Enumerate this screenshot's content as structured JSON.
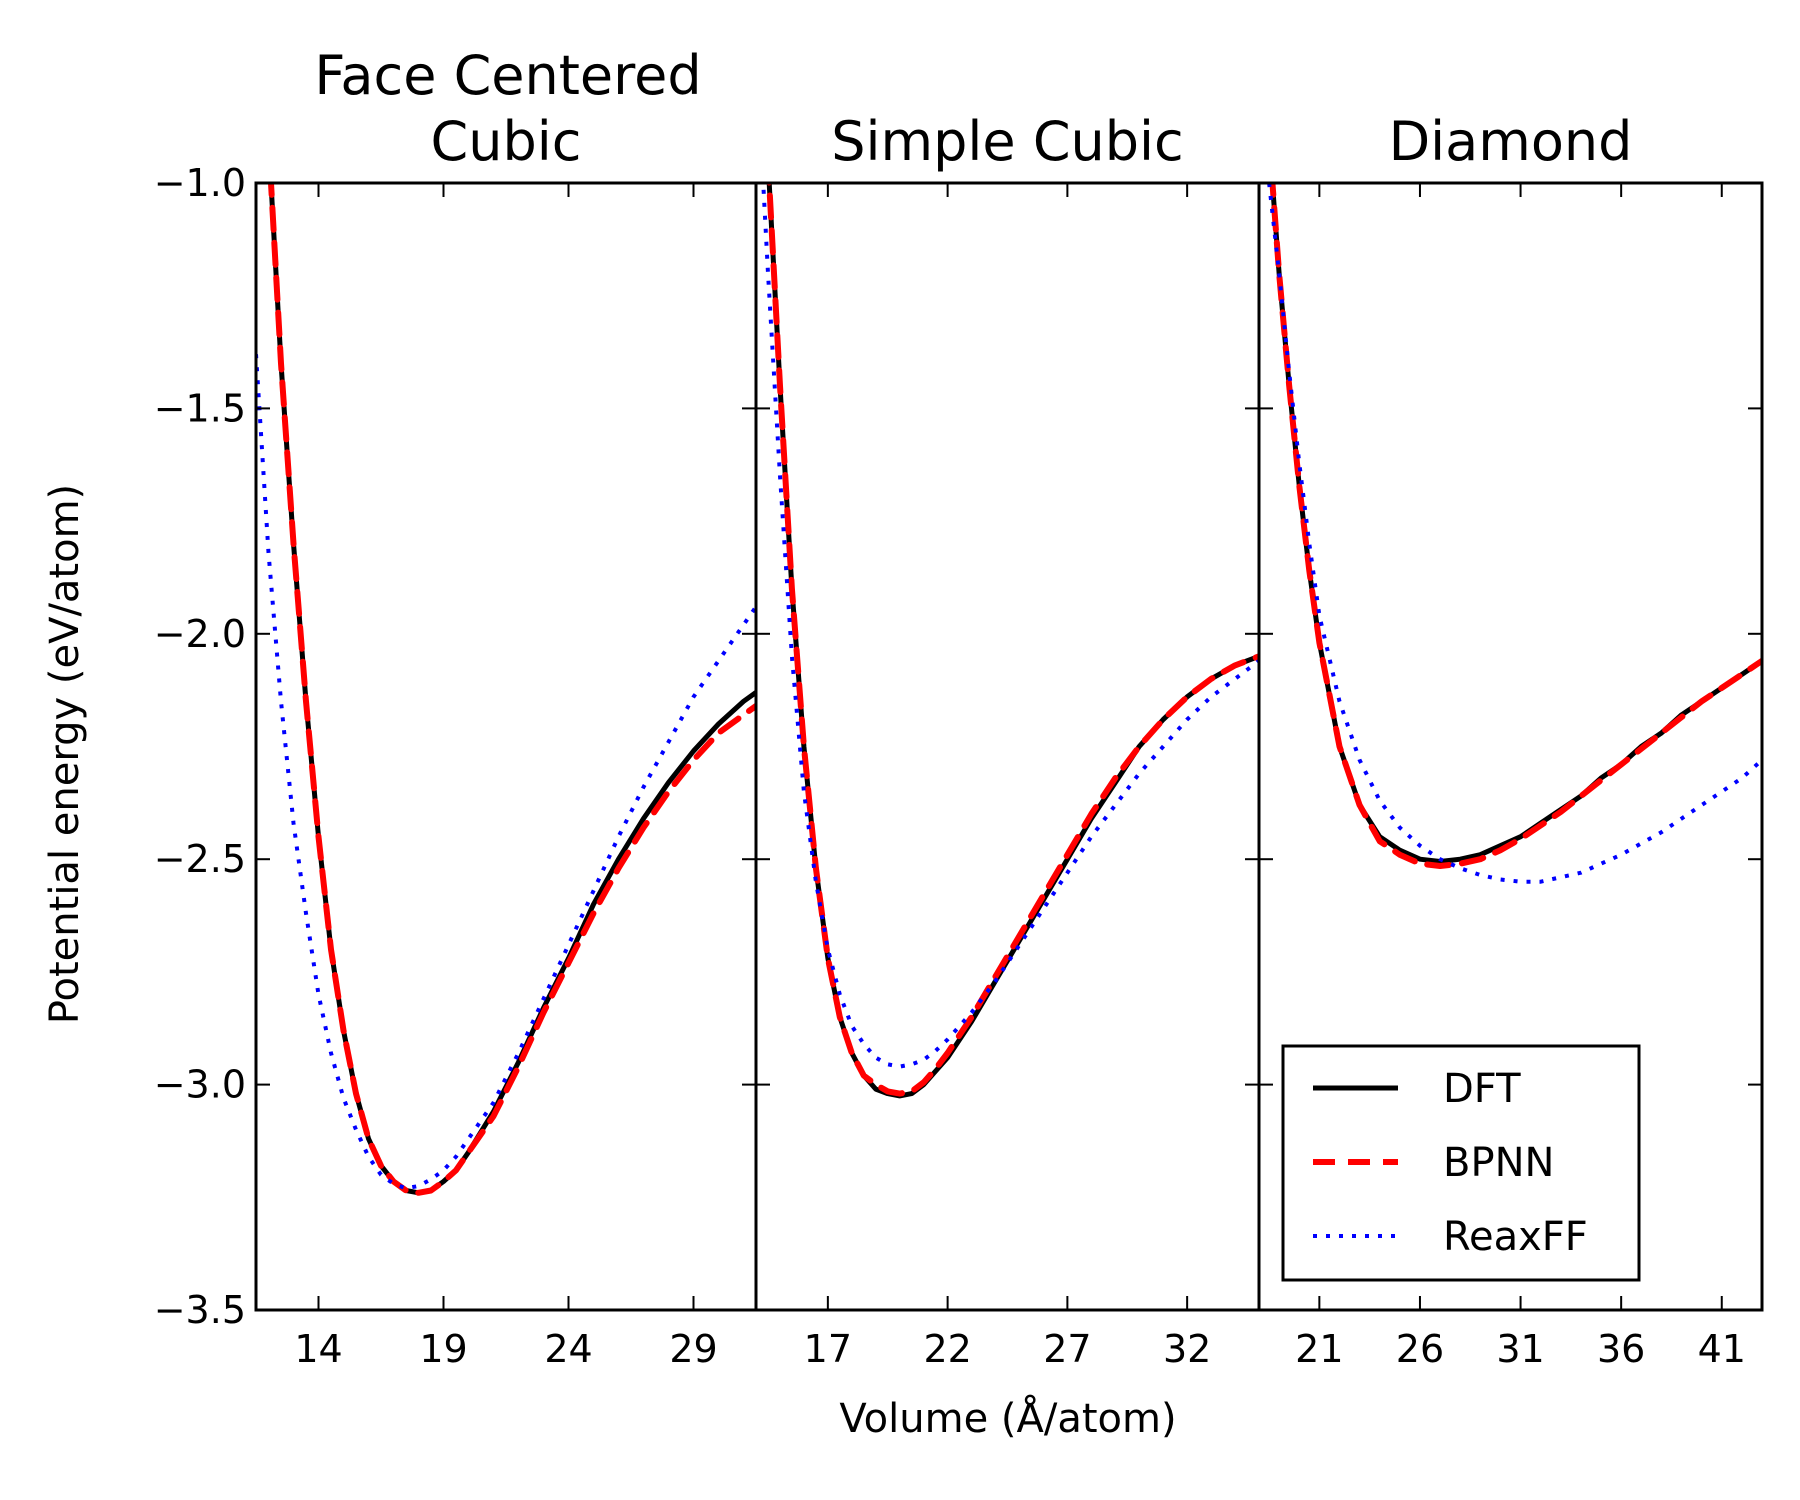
{
  "chart_data": {
    "type": "line",
    "ylabel": "Potential energy (eV/atom)",
    "xlabel": "Volume (Å/atom)",
    "ylim": [
      -3.5,
      -1.0
    ],
    "yticks": [
      -1.0,
      -1.5,
      -2.0,
      -2.5,
      -3.0,
      -3.5
    ],
    "ytick_labels": [
      "−1.0",
      "−1.5",
      "−2.0",
      "−2.5",
      "−3.0",
      "−3.5"
    ],
    "grid": false,
    "legend": {
      "location": "lower-right of third panel",
      "entries": [
        {
          "name": "DFT",
          "color": "#000000",
          "style": "solid"
        },
        {
          "name": "BPNN",
          "color": "#ff0000",
          "style": "dashed"
        },
        {
          "name": "ReaxFF",
          "color": "#0000ff",
          "style": "dotted"
        }
      ]
    },
    "panels": [
      {
        "title_lines": [
          "Face Centered",
          "Cubic"
        ],
        "xlim": [
          11.5,
          31.5
        ],
        "xticks": [
          14,
          19,
          24,
          29
        ],
        "xtick_labels": [
          "14",
          "19",
          "24",
          "29"
        ],
        "series": [
          {
            "name": "DFT",
            "x": [
              12.0,
              12.5,
              13.0,
              13.5,
              14.0,
              14.5,
              15.0,
              15.5,
              16.0,
              16.5,
              17.0,
              17.5,
              18.0,
              18.5,
              19.0,
              19.5,
              20.0,
              21.0,
              22.0,
              23.0,
              24.0,
              25.0,
              26.0,
              27.0,
              28.0,
              29.0,
              30.0,
              31.0,
              31.5
            ],
            "y": [
              -0.9,
              -1.4,
              -1.8,
              -2.15,
              -2.45,
              -2.7,
              -2.88,
              -3.02,
              -3.12,
              -3.18,
              -3.215,
              -3.235,
              -3.24,
              -3.235,
              -3.215,
              -3.19,
              -3.15,
              -3.06,
              -2.95,
              -2.83,
              -2.72,
              -2.6,
              -2.5,
              -2.41,
              -2.33,
              -2.26,
              -2.2,
              -2.15,
              -2.13
            ]
          },
          {
            "name": "BPNN",
            "x": [
              12.0,
              12.5,
              13.0,
              13.5,
              14.0,
              14.5,
              15.0,
              15.5,
              16.0,
              16.5,
              17.0,
              17.5,
              18.0,
              18.5,
              19.0,
              19.5,
              20.0,
              21.0,
              22.0,
              23.0,
              24.0,
              25.0,
              26.0,
              27.0,
              28.0,
              29.0,
              30.0,
              31.0,
              31.5
            ],
            "y": [
              -0.9,
              -1.4,
              -1.8,
              -2.15,
              -2.45,
              -2.7,
              -2.88,
              -3.02,
              -3.12,
              -3.18,
              -3.215,
              -3.235,
              -3.24,
              -3.235,
              -3.215,
              -3.19,
              -3.15,
              -3.07,
              -2.96,
              -2.84,
              -2.73,
              -2.62,
              -2.52,
              -2.43,
              -2.35,
              -2.28,
              -2.22,
              -2.18,
              -2.16
            ]
          },
          {
            "name": "ReaxFF",
            "x": [
              11.5,
              12.0,
              12.5,
              13.0,
              13.5,
              14.0,
              14.5,
              15.0,
              15.5,
              16.0,
              16.5,
              17.0,
              17.5,
              18.0,
              18.5,
              19.0,
              19.5,
              20.0,
              21.0,
              22.0,
              23.0,
              24.0,
              25.0,
              26.0,
              27.0,
              28.0,
              29.0,
              30.0,
              31.0,
              31.5
            ],
            "y": [
              -1.38,
              -1.82,
              -2.15,
              -2.42,
              -2.62,
              -2.8,
              -2.93,
              -3.03,
              -3.1,
              -3.16,
              -3.2,
              -3.22,
              -3.23,
              -3.225,
              -3.21,
              -3.19,
              -3.16,
              -3.12,
              -3.04,
              -2.93,
              -2.81,
              -2.69,
              -2.57,
              -2.45,
              -2.34,
              -2.24,
              -2.14,
              -2.06,
              -1.98,
              -1.94
            ]
          }
        ]
      },
      {
        "title_lines": [
          "Simple Cubic"
        ],
        "xlim": [
          14.0,
          35.0
        ],
        "xticks": [
          17,
          22,
          27,
          32
        ],
        "xtick_labels": [
          "17",
          "22",
          "27",
          "32"
        ],
        "series": [
          {
            "name": "DFT",
            "x": [
              14.5,
              15.0,
              15.5,
              16.0,
              16.5,
              17.0,
              17.5,
              18.0,
              18.5,
              19.0,
              19.5,
              20.0,
              20.5,
              21.0,
              21.5,
              22.0,
              23.0,
              24.0,
              25.0,
              26.0,
              27.0,
              28.0,
              29.0,
              30.0,
              31.0,
              32.0,
              33.0,
              34.0,
              35.0
            ],
            "y": [
              -0.95,
              -1.45,
              -1.9,
              -2.25,
              -2.52,
              -2.72,
              -2.85,
              -2.93,
              -2.98,
              -3.01,
              -3.02,
              -3.025,
              -3.02,
              -3.0,
              -2.97,
              -2.94,
              -2.86,
              -2.77,
              -2.68,
              -2.59,
              -2.5,
              -2.41,
              -2.33,
              -2.25,
              -2.19,
              -2.14,
              -2.1,
              -2.07,
              -2.05
            ]
          },
          {
            "name": "BPNN",
            "x": [
              14.5,
              15.0,
              15.5,
              16.0,
              16.5,
              17.0,
              17.5,
              18.0,
              18.5,
              19.0,
              19.5,
              20.0,
              20.5,
              21.0,
              21.5,
              22.0,
              23.0,
              24.0,
              25.0,
              26.0,
              27.0,
              28.0,
              29.0,
              30.0,
              31.0,
              32.0,
              33.0,
              34.0,
              35.0
            ],
            "y": [
              -0.95,
              -1.45,
              -1.9,
              -2.25,
              -2.52,
              -2.72,
              -2.85,
              -2.93,
              -2.98,
              -3.0,
              -3.015,
              -3.02,
              -3.015,
              -2.995,
              -2.965,
              -2.93,
              -2.85,
              -2.76,
              -2.67,
              -2.58,
              -2.49,
              -2.4,
              -2.32,
              -2.25,
              -2.19,
              -2.14,
              -2.1,
              -2.07,
              -2.05
            ]
          },
          {
            "name": "ReaxFF",
            "x": [
              14.2,
              14.5,
              15.0,
              15.5,
              16.0,
              16.5,
              17.0,
              17.5,
              18.0,
              18.5,
              19.0,
              19.5,
              20.0,
              20.5,
              21.0,
              21.5,
              22.0,
              23.0,
              24.0,
              25.0,
              26.0,
              27.0,
              28.0,
              29.0,
              30.0,
              31.0,
              32.0,
              33.0,
              34.0,
              35.0
            ],
            "y": [
              -0.9,
              -1.2,
              -1.65,
              -2.05,
              -2.35,
              -2.55,
              -2.7,
              -2.8,
              -2.87,
              -2.91,
              -2.94,
              -2.955,
              -2.96,
              -2.955,
              -2.945,
              -2.925,
              -2.9,
              -2.84,
              -2.77,
              -2.69,
              -2.61,
              -2.53,
              -2.45,
              -2.38,
              -2.31,
              -2.25,
              -2.19,
              -2.14,
              -2.1,
              -2.06
            ]
          }
        ]
      },
      {
        "title_lines": [
          "Diamond"
        ],
        "xlim": [
          18.0,
          43.0
        ],
        "xticks": [
          21,
          26,
          31,
          36,
          41
        ],
        "xtick_labels": [
          "21",
          "26",
          "31",
          "36",
          "41"
        ],
        "series": [
          {
            "name": "DFT",
            "x": [
              18.5,
              19.0,
              19.5,
              20.0,
              20.5,
              21.0,
              22.0,
              23.0,
              24.0,
              25.0,
              26.0,
              27.0,
              28.0,
              29.0,
              30.0,
              31.0,
              32.0,
              33.0,
              34.0,
              35.0,
              36.0,
              37.0,
              38.0,
              39.0,
              40.0,
              41.0,
              42.0,
              43.0
            ],
            "y": [
              -0.9,
              -1.2,
              -1.45,
              -1.67,
              -1.86,
              -2.02,
              -2.25,
              -2.38,
              -2.45,
              -2.48,
              -2.5,
              -2.505,
              -2.5,
              -2.49,
              -2.47,
              -2.45,
              -2.42,
              -2.39,
              -2.36,
              -2.32,
              -2.29,
              -2.25,
              -2.22,
              -2.18,
              -2.15,
              -2.12,
              -2.09,
              -2.06
            ]
          },
          {
            "name": "BPNN",
            "x": [
              18.5,
              19.0,
              19.5,
              20.0,
              20.5,
              21.0,
              22.0,
              23.0,
              24.0,
              25.0,
              26.0,
              27.0,
              28.0,
              29.0,
              30.0,
              31.0,
              32.0,
              33.0,
              34.0,
              35.0,
              36.0,
              37.0,
              38.0,
              39.0,
              40.0,
              41.0,
              42.0,
              43.0
            ],
            "y": [
              -0.9,
              -1.2,
              -1.45,
              -1.67,
              -1.86,
              -2.02,
              -2.25,
              -2.38,
              -2.46,
              -2.49,
              -2.51,
              -2.515,
              -2.51,
              -2.5,
              -2.48,
              -2.455,
              -2.425,
              -2.395,
              -2.36,
              -2.325,
              -2.29,
              -2.255,
              -2.22,
              -2.185,
              -2.15,
              -2.12,
              -2.09,
              -2.06
            ]
          },
          {
            "name": "ReaxFF",
            "x": [
              18.5,
              19.0,
              19.5,
              20.0,
              20.5,
              21.0,
              22.0,
              23.0,
              24.0,
              25.0,
              26.0,
              27.0,
              28.0,
              29.0,
              30.0,
              31.0,
              32.0,
              33.0,
              34.0,
              35.0,
              36.0,
              37.0,
              38.0,
              39.0,
              40.0,
              41.0,
              42.0,
              43.0
            ],
            "y": [
              -1.0,
              -1.2,
              -1.42,
              -1.62,
              -1.8,
              -1.96,
              -2.15,
              -2.28,
              -2.37,
              -2.43,
              -2.47,
              -2.5,
              -2.52,
              -2.535,
              -2.545,
              -2.55,
              -2.55,
              -2.54,
              -2.53,
              -2.51,
              -2.49,
              -2.465,
              -2.44,
              -2.41,
              -2.38,
              -2.35,
              -2.32,
              -2.28
            ]
          }
        ]
      }
    ]
  }
}
